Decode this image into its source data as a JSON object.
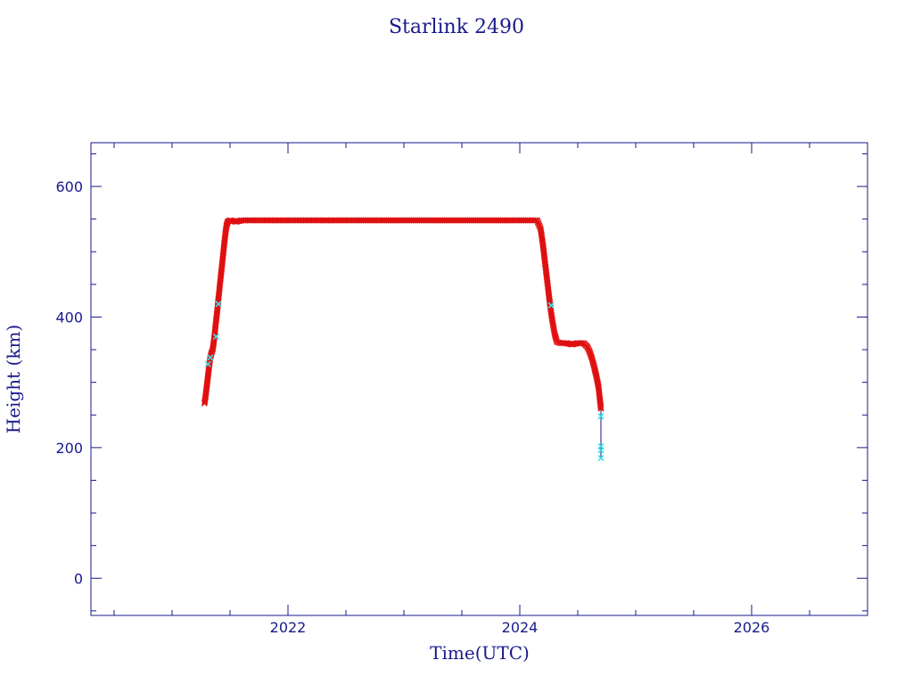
{
  "chart_data": {
    "type": "scatter",
    "title": "Starlink 2490",
    "xlabel": "Time(UTC)",
    "ylabel": "Height (km)",
    "xlim": [
      2020.3,
      2027.0
    ],
    "ylim": [
      -57,
      667
    ],
    "x_ticks": [
      2022,
      2024,
      2026
    ],
    "x_minor_step": 0.5,
    "y_ticks": [
      0,
      200,
      400,
      600
    ],
    "y_minor_step": 50,
    "grid": false,
    "legend": "none",
    "colors": {
      "axes": "#1a1a8c",
      "text": "#1a1a8c",
      "primary": "#e01010",
      "secondary": "#3ce0e8",
      "line": "#1a1a8c"
    },
    "series": [
      {
        "marker": "x",
        "color": "#e01010",
        "points": [
          [
            2021.28,
            268
          ],
          [
            2021.29,
            280
          ],
          [
            2021.3,
            295
          ],
          [
            2021.31,
            310
          ],
          [
            2021.32,
            325
          ],
          [
            2021.33,
            338
          ],
          [
            2021.34,
            345
          ],
          [
            2021.35,
            350
          ],
          [
            2021.36,
            362
          ],
          [
            2021.37,
            378
          ],
          [
            2021.38,
            395
          ],
          [
            2021.39,
            410
          ],
          [
            2021.4,
            428
          ],
          [
            2021.41,
            445
          ],
          [
            2021.42,
            462
          ],
          [
            2021.43,
            478
          ],
          [
            2021.44,
            495
          ],
          [
            2021.45,
            512
          ],
          [
            2021.46,
            528
          ],
          [
            2021.47,
            540
          ],
          [
            2021.48,
            546
          ],
          [
            2021.5,
            548
          ],
          [
            2021.55,
            546
          ],
          [
            2021.6,
            548
          ],
          [
            2021.7,
            548
          ],
          [
            2021.8,
            548
          ],
          [
            2022.0,
            548
          ],
          [
            2022.25,
            548
          ],
          [
            2022.5,
            548
          ],
          [
            2022.75,
            548
          ],
          [
            2023.0,
            548
          ],
          [
            2023.25,
            548
          ],
          [
            2023.5,
            548
          ],
          [
            2023.75,
            548
          ],
          [
            2024.0,
            548
          ],
          [
            2024.15,
            548
          ],
          [
            2024.18,
            535
          ],
          [
            2024.2,
            510
          ],
          [
            2024.22,
            480
          ],
          [
            2024.24,
            450
          ],
          [
            2024.26,
            420
          ],
          [
            2024.28,
            395
          ],
          [
            2024.3,
            375
          ],
          [
            2024.32,
            362
          ],
          [
            2024.35,
            360
          ],
          [
            2024.4,
            360
          ],
          [
            2024.45,
            358
          ],
          [
            2024.5,
            360
          ],
          [
            2024.55,
            360
          ],
          [
            2024.58,
            355
          ],
          [
            2024.6,
            348
          ],
          [
            2024.62,
            338
          ],
          [
            2024.64,
            325
          ],
          [
            2024.66,
            310
          ],
          [
            2024.68,
            292
          ],
          [
            2024.69,
            275
          ],
          [
            2024.7,
            260
          ]
        ]
      },
      {
        "marker": "x",
        "color": "#3ce0e8",
        "points": [
          [
            2021.31,
            328
          ],
          [
            2021.33,
            338
          ],
          [
            2021.38,
            370
          ],
          [
            2021.4,
            420
          ],
          [
            2024.27,
            418
          ],
          [
            2024.7,
            248
          ],
          [
            2024.7,
            202
          ],
          [
            2024.7,
            196
          ],
          [
            2024.7,
            184
          ]
        ]
      }
    ],
    "connector": [
      [
        2024.7,
        260
      ],
      [
        2024.7,
        184
      ]
    ]
  }
}
